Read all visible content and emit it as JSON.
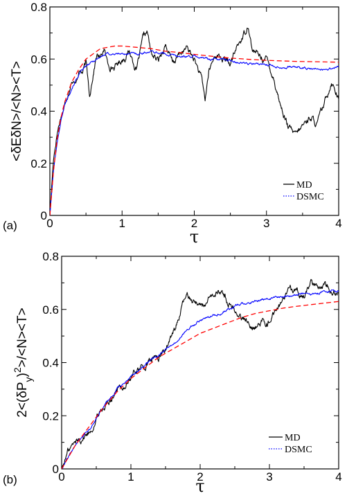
{
  "chart_data": [
    {
      "type": "line",
      "panel_label": "(a)",
      "ylabel": "<δEδN>/<N><T>",
      "xlabel": "τ",
      "xlim": [
        0,
        4
      ],
      "ylim": [
        0,
        0.8
      ],
      "x_ticks": [
        "0",
        "1",
        "2",
        "3",
        "4"
      ],
      "y_ticks": [
        "0",
        "0.2",
        "0.4",
        "0.6",
        "0.8"
      ],
      "legend_position": "bottom-right",
      "legend": [
        {
          "label": "MD",
          "color": "#000000",
          "style": "solid"
        },
        {
          "label": "DSMC",
          "color": "#0000ff",
          "style": "dotted"
        }
      ],
      "series": [
        {
          "name": "MD",
          "color": "#000000",
          "x": [
            0,
            0.05,
            0.1,
            0.15,
            0.2,
            0.25,
            0.3,
            0.35,
            0.4,
            0.45,
            0.5,
            0.55,
            0.6,
            0.65,
            0.7,
            0.75,
            0.8,
            0.9,
            1.0,
            1.1,
            1.2,
            1.3,
            1.35,
            1.4,
            1.5,
            1.6,
            1.7,
            1.8,
            1.9,
            2.0,
            2.1,
            2.15,
            2.2,
            2.3,
            2.4,
            2.5,
            2.6,
            2.7,
            2.75,
            2.8,
            2.9,
            3.0,
            3.1,
            3.2,
            3.3,
            3.4,
            3.5,
            3.6,
            3.7,
            3.8,
            3.9,
            4.0
          ],
          "y": [
            0,
            0.22,
            0.32,
            0.38,
            0.42,
            0.47,
            0.53,
            0.5,
            0.56,
            0.55,
            0.58,
            0.46,
            0.55,
            0.62,
            0.6,
            0.64,
            0.58,
            0.57,
            0.6,
            0.63,
            0.56,
            0.68,
            0.7,
            0.62,
            0.59,
            0.66,
            0.58,
            0.62,
            0.64,
            0.6,
            0.52,
            0.44,
            0.55,
            0.62,
            0.6,
            0.58,
            0.65,
            0.7,
            0.74,
            0.64,
            0.61,
            0.6,
            0.53,
            0.42,
            0.34,
            0.3,
            0.34,
            0.38,
            0.35,
            0.42,
            0.52,
            0.46
          ]
        },
        {
          "name": "DSMC",
          "color": "#0000ff",
          "x": [
            0,
            0.05,
            0.1,
            0.15,
            0.2,
            0.3,
            0.4,
            0.5,
            0.6,
            0.7,
            0.8,
            1.0,
            1.2,
            1.4,
            1.6,
            1.8,
            2.0,
            2.2,
            2.4,
            2.6,
            2.8,
            3.0,
            3.2,
            3.4,
            3.6,
            3.8,
            4.0
          ],
          "y": [
            0,
            0.17,
            0.28,
            0.36,
            0.42,
            0.49,
            0.54,
            0.57,
            0.59,
            0.61,
            0.62,
            0.62,
            0.62,
            0.63,
            0.62,
            0.61,
            0.61,
            0.6,
            0.6,
            0.59,
            0.58,
            0.58,
            0.57,
            0.57,
            0.56,
            0.56,
            0.57
          ]
        },
        {
          "name": "",
          "color": "#ff0000",
          "style": "dashed",
          "x": [
            0,
            0.05,
            0.1,
            0.15,
            0.2,
            0.3,
            0.4,
            0.5,
            0.6,
            0.7,
            0.8,
            0.9,
            1.0,
            1.2,
            1.4,
            1.6,
            1.8,
            2.0,
            2.2,
            2.4,
            2.6,
            2.8,
            3.0,
            3.2,
            3.4,
            3.6,
            3.8,
            4.0
          ],
          "y": [
            0,
            0.17,
            0.29,
            0.37,
            0.43,
            0.51,
            0.56,
            0.6,
            0.62,
            0.64,
            0.645,
            0.65,
            0.65,
            0.645,
            0.64,
            0.63,
            0.625,
            0.618,
            0.612,
            0.606,
            0.602,
            0.598,
            0.595,
            0.593,
            0.591,
            0.59,
            0.589,
            0.588
          ]
        }
      ]
    },
    {
      "type": "line",
      "panel_label": "(b)",
      "ylabel_parts": [
        "2<(δP",
        "y",
        ")",
        "2",
        ">/<N><T>"
      ],
      "xlabel": "τ",
      "xlim": [
        0,
        4
      ],
      "ylim": [
        0,
        0.8
      ],
      "x_ticks": [
        "0",
        "1",
        "2",
        "3",
        "4"
      ],
      "y_ticks": [
        "0",
        "0.2",
        "0.4",
        "0.6",
        "0.8"
      ],
      "legend_position": "bottom-right",
      "legend": [
        {
          "label": "MD",
          "color": "#000000",
          "style": "solid"
        },
        {
          "label": "DSMC",
          "color": "#0000ff",
          "style": "dotted"
        }
      ],
      "series": [
        {
          "name": "MD",
          "color": "#000000",
          "x": [
            0,
            0.1,
            0.2,
            0.3,
            0.4,
            0.5,
            0.6,
            0.7,
            0.8,
            0.9,
            1.0,
            1.1,
            1.2,
            1.3,
            1.4,
            1.5,
            1.6,
            1.7,
            1.8,
            1.9,
            2.0,
            2.1,
            2.2,
            2.3,
            2.4,
            2.5,
            2.6,
            2.7,
            2.8,
            2.9,
            3.0,
            3.1,
            3.2,
            3.3,
            3.4,
            3.5,
            3.6,
            3.7,
            3.8,
            3.9,
            4.0
          ],
          "y": [
            0,
            0.07,
            0.1,
            0.12,
            0.14,
            0.19,
            0.23,
            0.27,
            0.3,
            0.31,
            0.34,
            0.38,
            0.38,
            0.41,
            0.42,
            0.45,
            0.5,
            0.58,
            0.65,
            0.64,
            0.62,
            0.62,
            0.65,
            0.67,
            0.63,
            0.6,
            0.57,
            0.55,
            0.54,
            0.55,
            0.56,
            0.6,
            0.63,
            0.66,
            0.67,
            0.66,
            0.7,
            0.69,
            0.7,
            0.69,
            0.66
          ]
        },
        {
          "name": "DSMC",
          "color": "#0000ff",
          "x": [
            0,
            0.2,
            0.4,
            0.6,
            0.8,
            1.0,
            1.2,
            1.4,
            1.6,
            1.8,
            2.0,
            2.2,
            2.4,
            2.6,
            2.8,
            3.0,
            3.2,
            3.4,
            3.6,
            3.8,
            4.0
          ],
          "y": [
            0,
            0.09,
            0.15,
            0.23,
            0.3,
            0.35,
            0.39,
            0.43,
            0.47,
            0.52,
            0.56,
            0.58,
            0.6,
            0.62,
            0.63,
            0.64,
            0.65,
            0.66,
            0.66,
            0.67,
            0.67
          ]
        },
        {
          "name": "",
          "color": "#ff0000",
          "style": "dashed",
          "x": [
            0,
            0.2,
            0.4,
            0.6,
            0.8,
            1.0,
            1.2,
            1.4,
            1.6,
            1.8,
            2.0,
            2.2,
            2.4,
            2.6,
            2.8,
            3.0,
            3.2,
            3.4,
            3.6,
            3.8,
            4.0
          ],
          "y": [
            0,
            0.09,
            0.16,
            0.23,
            0.29,
            0.34,
            0.38,
            0.42,
            0.45,
            0.48,
            0.51,
            0.53,
            0.55,
            0.57,
            0.585,
            0.595,
            0.605,
            0.612,
            0.618,
            0.624,
            0.63
          ]
        }
      ]
    }
  ]
}
